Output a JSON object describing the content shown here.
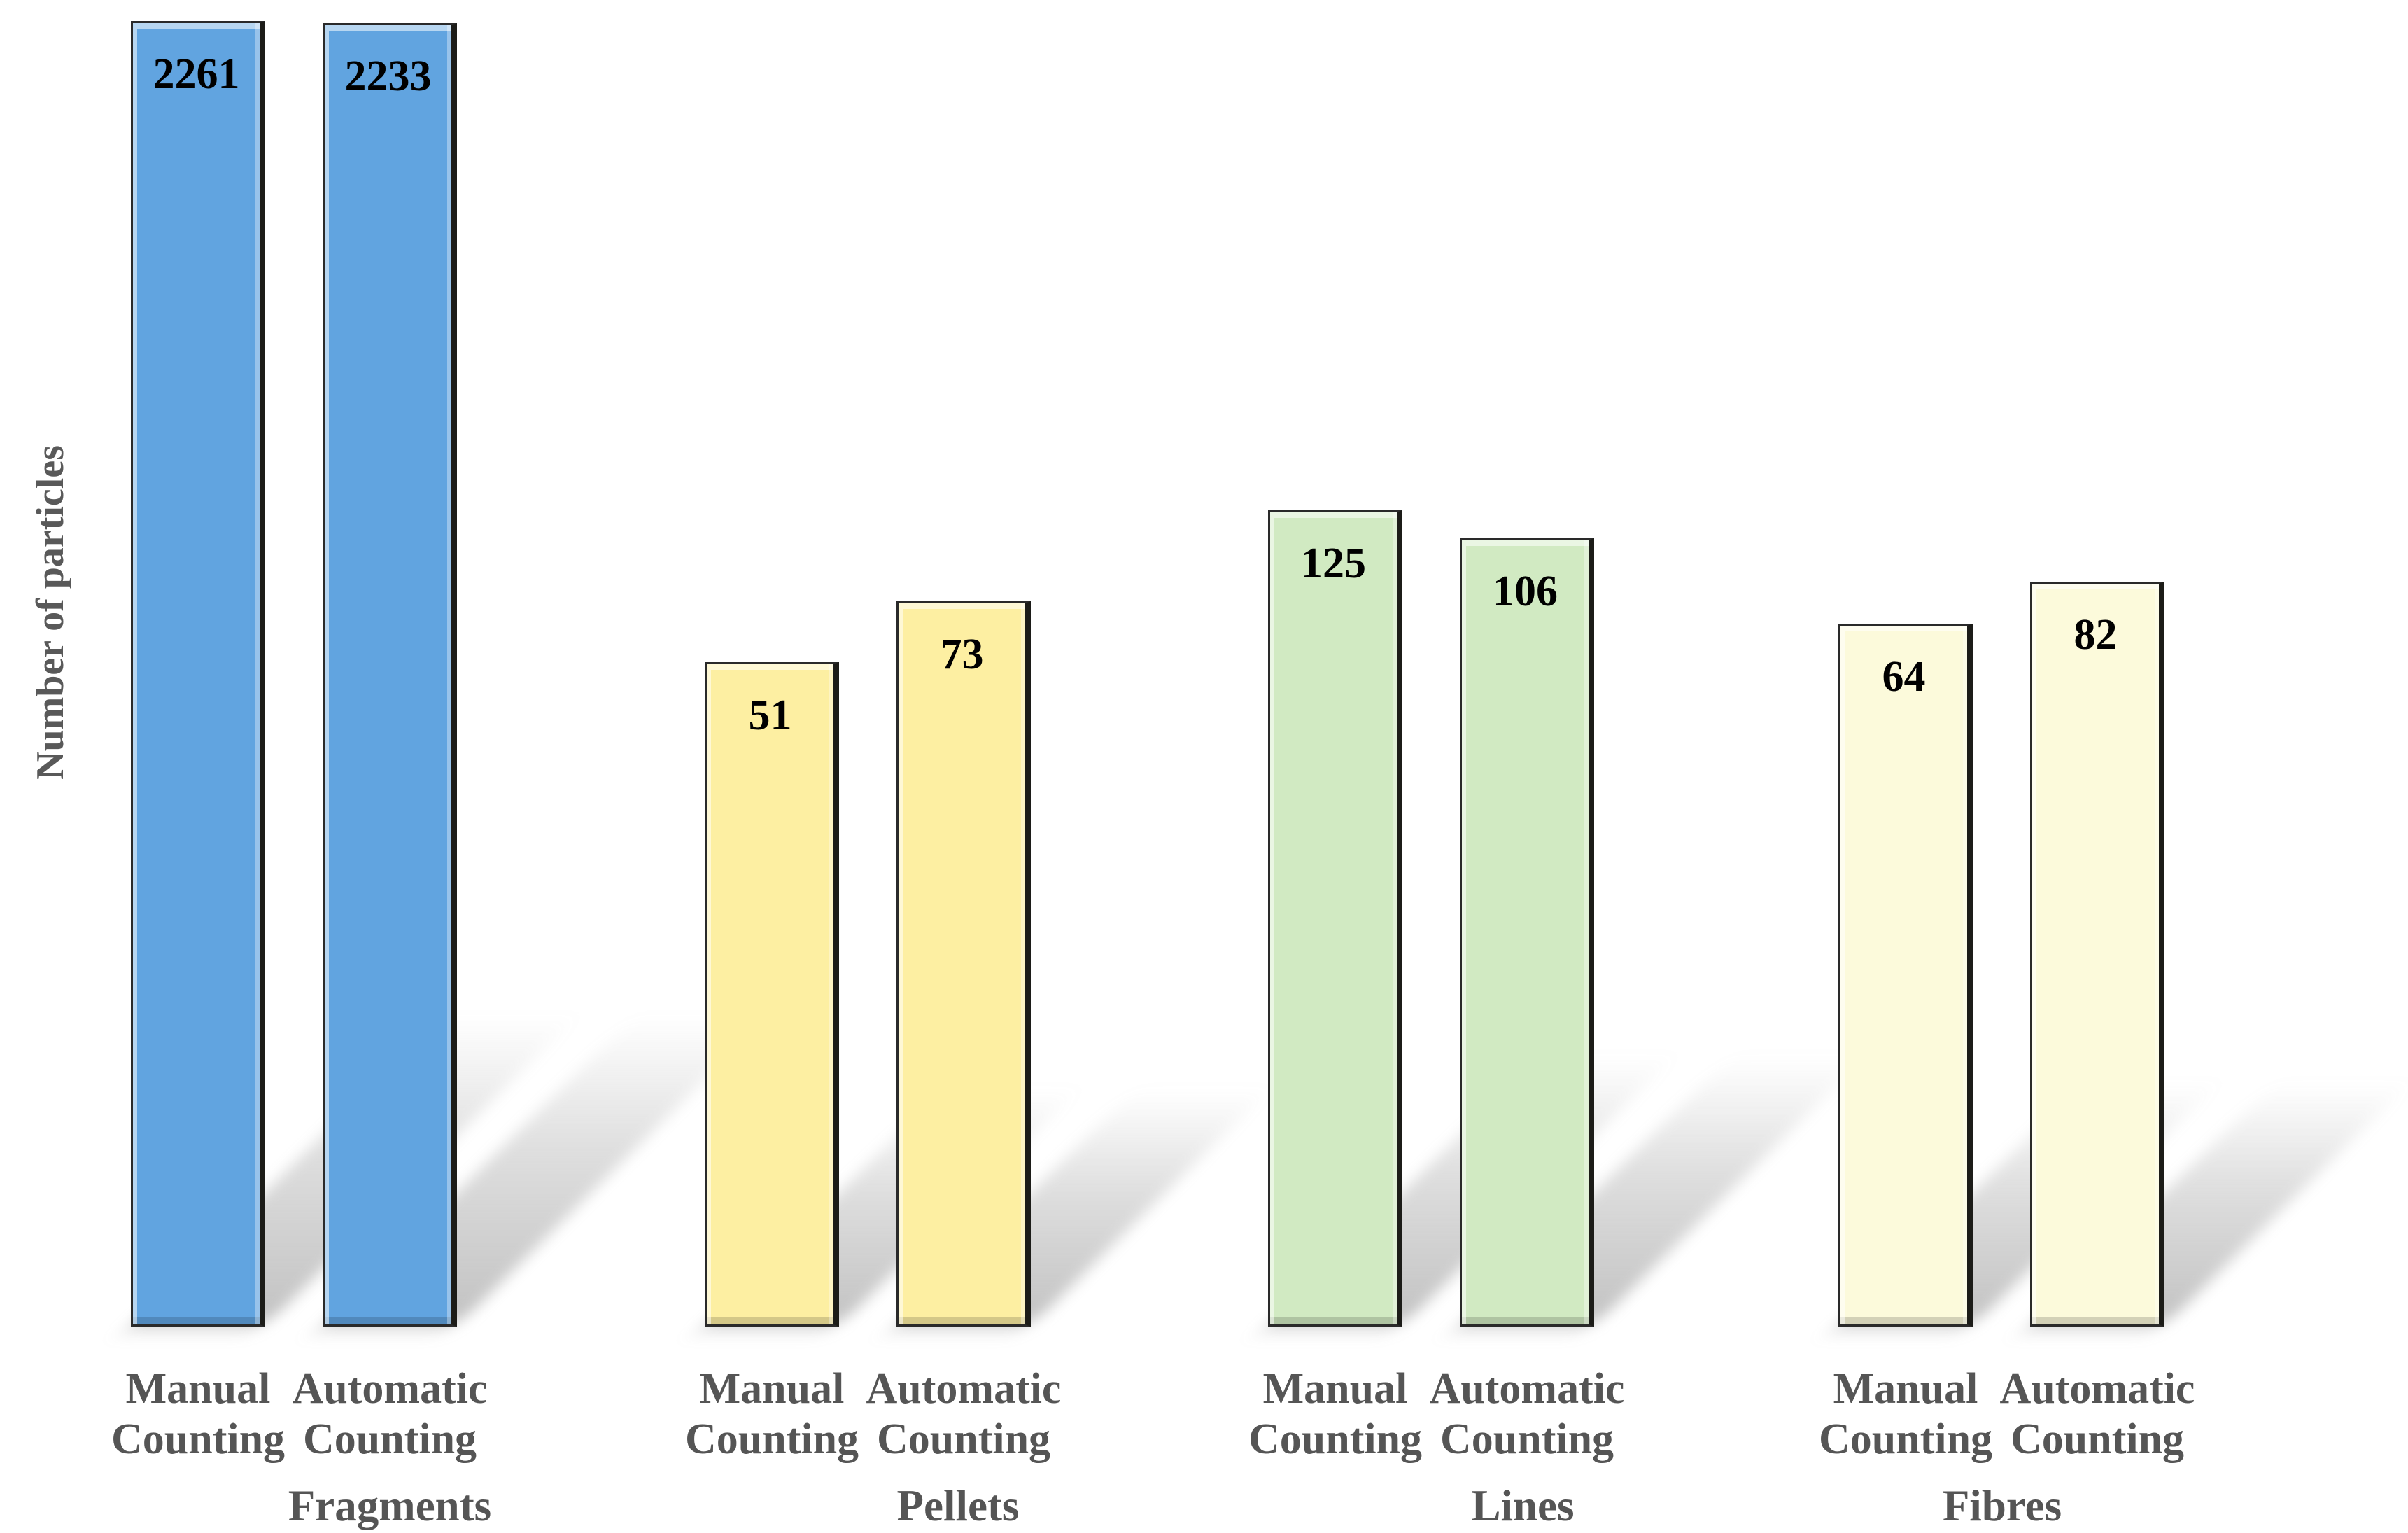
{
  "chart_data": {
    "type": "bar",
    "title": "",
    "ylabel": "Number of particles",
    "xlabel": "",
    "y_scale": "log10",
    "gridlines": false,
    "legend": "none",
    "value_labels_shown": true,
    "series_labels": [
      "Manual Counting",
      "Automatic Counting"
    ],
    "groups": [
      {
        "name": "Fragments",
        "fill": "#61A4E0",
        "values": [
          2261,
          2233
        ]
      },
      {
        "name": "Pellets",
        "fill": "#FDEFA2",
        "values": [
          51,
          73
        ]
      },
      {
        "name": "Lines",
        "fill": "#D1EAC2",
        "values": [
          125,
          106
        ]
      },
      {
        "name": "Fibres",
        "fill": "#FCFADB",
        "values": [
          64,
          82
        ]
      }
    ],
    "colors": {
      "bar_border": "#2A2A2A",
      "shadow": "#787878",
      "axis_text": "#555555",
      "value_text": "#000000",
      "background": "#FFFFFF"
    }
  }
}
